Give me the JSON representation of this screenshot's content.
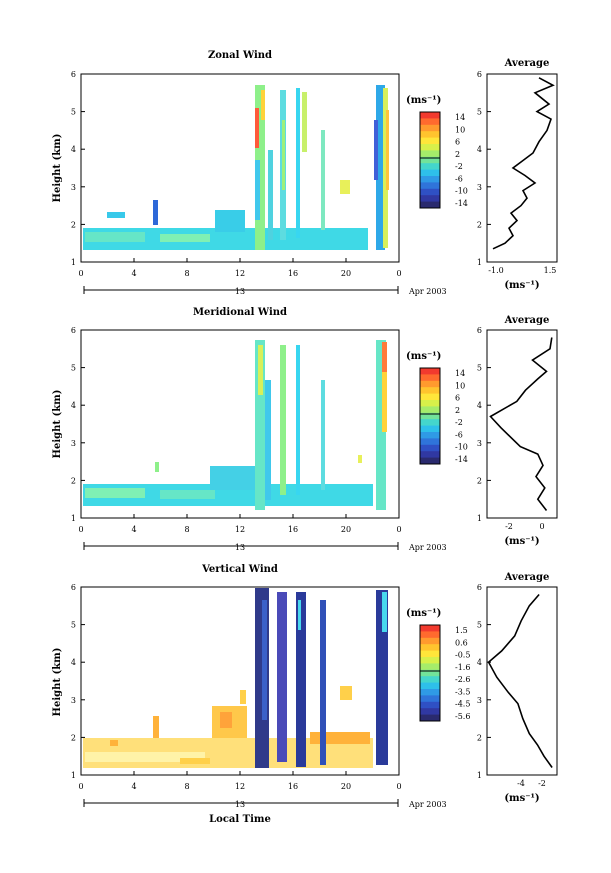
{
  "chart_data": [
    {
      "type": "heatmap",
      "title": "Zonal Wind",
      "ylabel": "Height (km)",
      "ylim": [
        1,
        6
      ],
      "xlim": [
        0,
        24
      ],
      "yticks": [
        "1",
        "2",
        "3",
        "4",
        "5",
        "6"
      ],
      "xticks": [
        "0",
        "4",
        "8",
        "12",
        "16",
        "20",
        "0"
      ],
      "date_label": "13",
      "date_right": "Apr 2003",
      "colorbar": {
        "unit": "(ms⁻¹)",
        "ticks": [
          "14",
          "10",
          "6",
          "2",
          "-2",
          "-6",
          "-10",
          "-14"
        ],
        "range": [
          -15,
          15
        ]
      },
      "average": {
        "title": "Average",
        "xticks": [
          "-1.0",
          "1.5"
        ],
        "unit": "(ms⁻¹)",
        "xlim": [
          -1.5,
          2.0
        ],
        "profile": [
          [
            -1.2,
            1.35
          ],
          [
            -0.6,
            1.5
          ],
          [
            -0.2,
            1.7
          ],
          [
            -0.4,
            1.9
          ],
          [
            0.0,
            2.1
          ],
          [
            -0.3,
            2.3
          ],
          [
            0.2,
            2.5
          ],
          [
            0.5,
            2.7
          ],
          [
            0.3,
            2.9
          ],
          [
            0.9,
            3.1
          ],
          [
            0.4,
            3.3
          ],
          [
            -0.2,
            3.5
          ],
          [
            0.3,
            3.7
          ],
          [
            0.8,
            3.9
          ],
          [
            1.1,
            4.2
          ],
          [
            1.5,
            4.5
          ],
          [
            1.7,
            4.8
          ],
          [
            1.0,
            5.0
          ],
          [
            1.6,
            5.2
          ],
          [
            0.9,
            5.5
          ],
          [
            1.8,
            5.7
          ],
          [
            1.1,
            5.9
          ]
        ]
      }
    },
    {
      "type": "heatmap",
      "title": "Meridional Wind",
      "ylabel": "Height (km)",
      "ylim": [
        1,
        6
      ],
      "xlim": [
        0,
        24
      ],
      "yticks": [
        "1",
        "2",
        "3",
        "4",
        "5",
        "6"
      ],
      "xticks": [
        "0",
        "4",
        "8",
        "12",
        "16",
        "20",
        "0"
      ],
      "date_label": "13",
      "date_right": "Apr 2003",
      "colorbar": {
        "unit": "(ms⁻¹)",
        "ticks": [
          "14",
          "10",
          "6",
          "2",
          "-2",
          "-6",
          "-10",
          "-14"
        ],
        "range": [
          -15,
          15
        ]
      },
      "average": {
        "title": "Average",
        "xticks": [
          "-2",
          "0"
        ],
        "unit": "(ms⁻¹)",
        "xlim": [
          -3.2,
          0.8
        ],
        "profile": [
          [
            0.2,
            1.2
          ],
          [
            -0.3,
            1.5
          ],
          [
            0.1,
            1.8
          ],
          [
            -0.4,
            2.1
          ],
          [
            0.0,
            2.4
          ],
          [
            -0.3,
            2.7
          ],
          [
            -1.3,
            2.9
          ],
          [
            -2.4,
            3.4
          ],
          [
            -3.0,
            3.7
          ],
          [
            -1.5,
            4.1
          ],
          [
            -1.0,
            4.4
          ],
          [
            -0.3,
            4.7
          ],
          [
            0.2,
            4.9
          ],
          [
            -0.6,
            5.2
          ],
          [
            0.4,
            5.5
          ],
          [
            0.5,
            5.8
          ]
        ]
      }
    },
    {
      "type": "heatmap",
      "title": "Vertical Wind",
      "ylabel": "Height (km)",
      "xlabel": "Local Time",
      "ylim": [
        1,
        6
      ],
      "xlim": [
        0,
        24
      ],
      "yticks": [
        "1",
        "2",
        "3",
        "4",
        "5",
        "6"
      ],
      "xticks": [
        "0",
        "4",
        "8",
        "12",
        "16",
        "20",
        "0"
      ],
      "date_label": "13",
      "date_right": "Apr 2003",
      "colorbar": {
        "unit": "(ms⁻¹)",
        "ticks": [
          "1.5",
          "0.6",
          "-0.5",
          "-1.6",
          "-2.6",
          "-3.5",
          "-4.5",
          "-5.6"
        ],
        "range": [
          -6,
          2
        ]
      },
      "average": {
        "title": "Average",
        "xticks": [
          "-4",
          "-2"
        ],
        "unit": "(ms⁻¹)",
        "xlim": [
          -5.5,
          -1.2
        ],
        "profile": [
          [
            -1.5,
            1.2
          ],
          [
            -2.0,
            1.5
          ],
          [
            -2.4,
            1.8
          ],
          [
            -2.9,
            2.1
          ],
          [
            -3.3,
            2.5
          ],
          [
            -3.6,
            2.9
          ],
          [
            -4.2,
            3.2
          ],
          [
            -4.9,
            3.6
          ],
          [
            -5.4,
            4.0
          ],
          [
            -4.6,
            4.3
          ],
          [
            -3.8,
            4.7
          ],
          [
            -3.4,
            5.1
          ],
          [
            -2.9,
            5.5
          ],
          [
            -2.3,
            5.8
          ]
        ]
      }
    }
  ]
}
